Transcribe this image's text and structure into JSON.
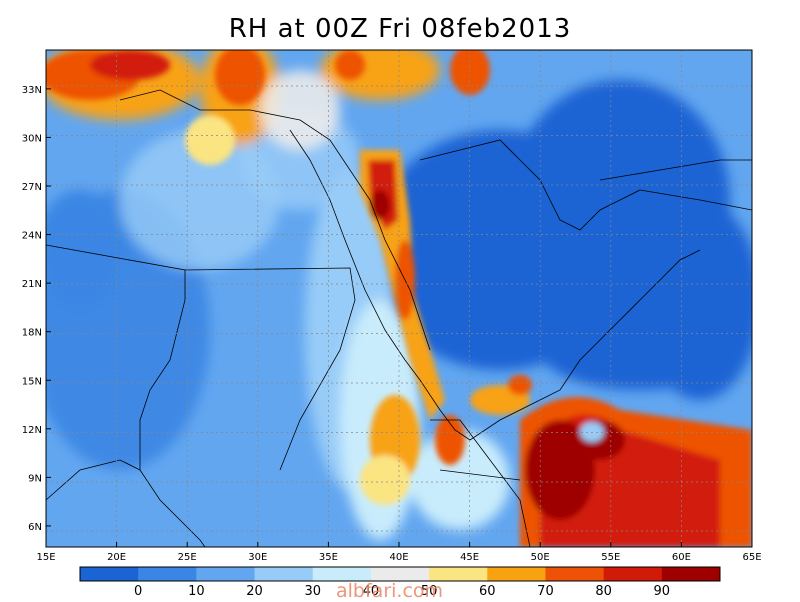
{
  "title": "RH at 00Z Fri 08feb2013",
  "watermark": "albfari.com",
  "map": {
    "lon_range": [
      15,
      65
    ],
    "lat_range": [
      4.7,
      35.4
    ],
    "x_ticks": [
      "15E",
      "20E",
      "25E",
      "30E",
      "35E",
      "40E",
      "45E",
      "50E",
      "55E",
      "60E",
      "65E"
    ],
    "y_ticks": [
      "6N",
      "9N",
      "12N",
      "15N",
      "18N",
      "21N",
      "24N",
      "27N",
      "30N",
      "33N"
    ],
    "grid": "dotted"
  },
  "colorbar": {
    "labels": [
      "0",
      "10",
      "20",
      "30",
      "40",
      "50",
      "60",
      "70",
      "80",
      "90"
    ],
    "colors": [
      "#1b64d4",
      "#3a86e4",
      "#62a6f0",
      "#98ccf8",
      "#c9ecfc",
      "#ebebeb",
      "#fbe482",
      "#f8a212",
      "#ee5206",
      "#d21a08",
      "#9e0000"
    ]
  }
}
